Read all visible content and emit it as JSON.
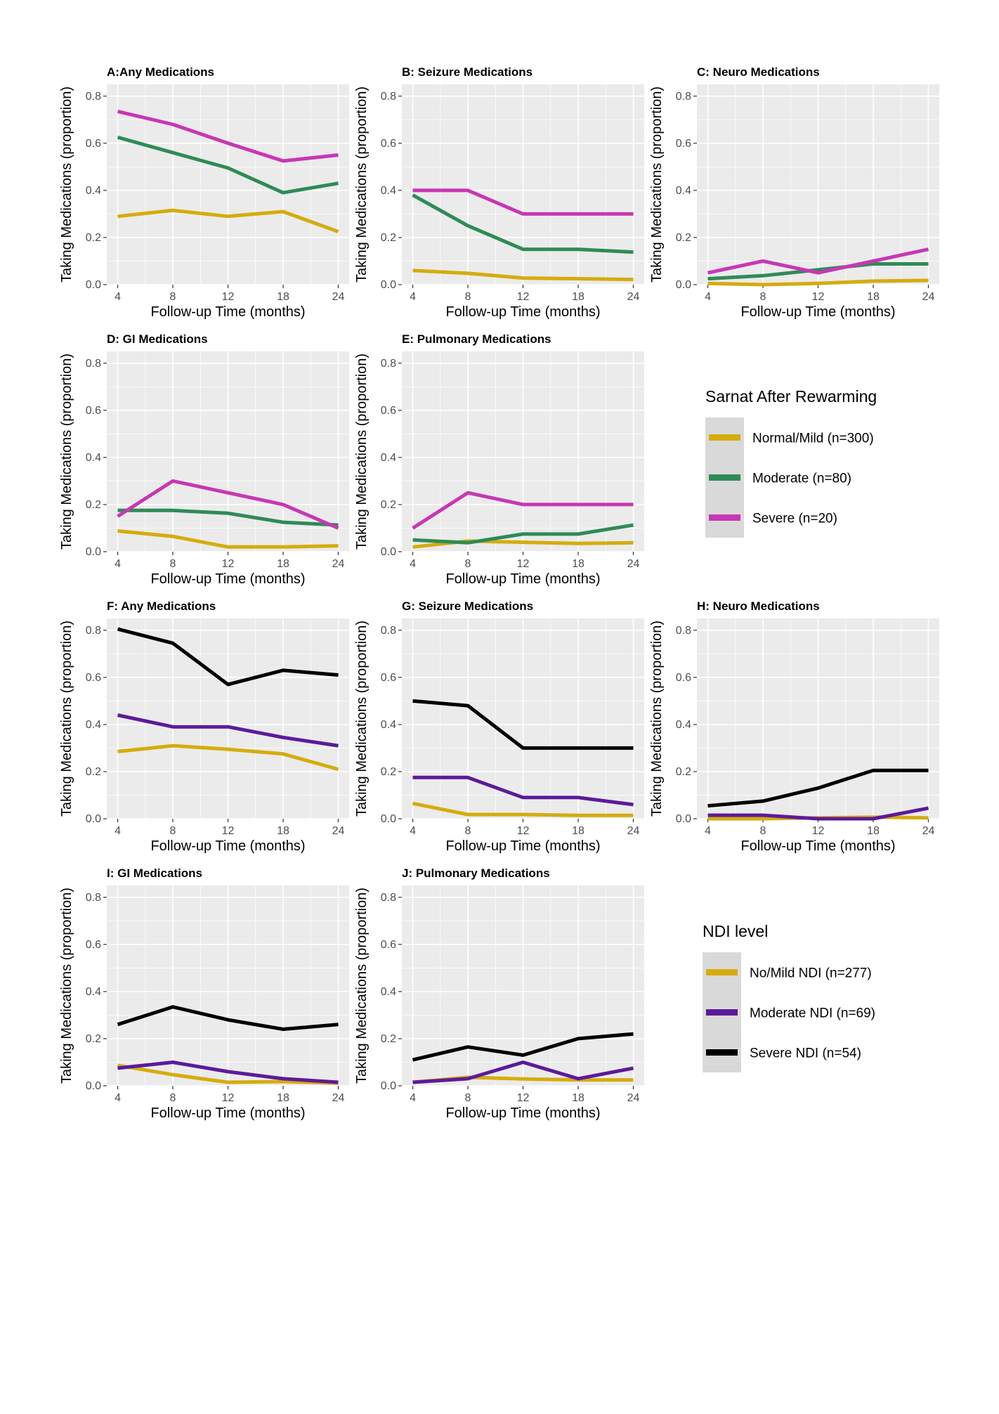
{
  "chart_data": [
    {
      "panel": "A",
      "type": "line",
      "title": "A:Any Medications",
      "xlabel": "Follow-up Time (months)",
      "ylabel": "Taking Medications (proportion)",
      "categories": [
        "4",
        "8",
        "12",
        "18",
        "24"
      ],
      "ylim": [
        0,
        0.85
      ],
      "yticks": [
        "0.0",
        "0.2",
        "0.4",
        "0.6",
        "0.8"
      ],
      "grid": true,
      "group": "sarnat",
      "series": [
        {
          "name": "Normal/Mild (n=300)",
          "color": "#d4ac0d",
          "values": [
            0.29,
            0.315,
            0.29,
            0.31,
            0.225
          ]
        },
        {
          "name": "Moderate (n=80)",
          "color": "#2e8b57",
          "values": [
            0.625,
            0.56,
            0.495,
            0.39,
            0.43
          ]
        },
        {
          "name": "Severe (n=20)",
          "color": "#c837b4",
          "values": [
            0.735,
            0.68,
            0.6,
            0.525,
            0.55
          ]
        }
      ]
    },
    {
      "panel": "B",
      "type": "line",
      "title": "B: Seizure Medications",
      "xlabel": "Follow-up Time (months)",
      "ylabel": "Taking Medications (proportion)",
      "categories": [
        "4",
        "8",
        "12",
        "18",
        "24"
      ],
      "ylim": [
        0,
        0.85
      ],
      "yticks": [
        "0.0",
        "0.2",
        "0.4",
        "0.6",
        "0.8"
      ],
      "grid": true,
      "group": "sarnat",
      "series": [
        {
          "name": "Normal/Mild (n=300)",
          "color": "#d4ac0d",
          "values": [
            0.06,
            0.048,
            0.028,
            0.025,
            0.022
          ]
        },
        {
          "name": "Moderate (n=80)",
          "color": "#2e8b57",
          "values": [
            0.38,
            0.25,
            0.15,
            0.15,
            0.138
          ]
        },
        {
          "name": "Severe (n=20)",
          "color": "#c837b4",
          "values": [
            0.4,
            0.4,
            0.3,
            0.3,
            0.3
          ]
        }
      ]
    },
    {
      "panel": "C",
      "type": "line",
      "title": "C: Neuro Medications",
      "xlabel": "Follow-up Time (months)",
      "ylabel": "Taking Medications (proportion)",
      "categories": [
        "4",
        "8",
        "12",
        "18",
        "24"
      ],
      "ylim": [
        0,
        0.85
      ],
      "yticks": [
        "0.0",
        "0.2",
        "0.4",
        "0.6",
        "0.8"
      ],
      "grid": true,
      "group": "sarnat",
      "series": [
        {
          "name": "Normal/Mild (n=300)",
          "color": "#d4ac0d",
          "values": [
            0.005,
            0.0,
            0.005,
            0.015,
            0.018
          ]
        },
        {
          "name": "Moderate (n=80)",
          "color": "#2e8b57",
          "values": [
            0.025,
            0.038,
            0.063,
            0.088,
            0.088
          ]
        },
        {
          "name": "Severe (n=20)",
          "color": "#c837b4",
          "values": [
            0.05,
            0.1,
            0.05,
            0.1,
            0.15
          ]
        }
      ]
    },
    {
      "panel": "D",
      "type": "line",
      "title": "D: GI Medications",
      "xlabel": "Follow-up Time (months)",
      "ylabel": "Taking Medications (proportion)",
      "categories": [
        "4",
        "8",
        "12",
        "18",
        "24"
      ],
      "ylim": [
        0,
        0.85
      ],
      "yticks": [
        "0.0",
        "0.2",
        "0.4",
        "0.6",
        "0.8"
      ],
      "grid": true,
      "group": "sarnat",
      "series": [
        {
          "name": "Normal/Mild (n=300)",
          "color": "#d4ac0d",
          "values": [
            0.088,
            0.065,
            0.02,
            0.02,
            0.025
          ]
        },
        {
          "name": "Moderate (n=80)",
          "color": "#2e8b57",
          "values": [
            0.175,
            0.175,
            0.163,
            0.125,
            0.113
          ]
        },
        {
          "name": "Severe (n=20)",
          "color": "#c837b4",
          "values": [
            0.15,
            0.3,
            0.25,
            0.2,
            0.1
          ]
        }
      ]
    },
    {
      "panel": "E",
      "type": "line",
      "title": "E: Pulmonary Medications",
      "xlabel": "Follow-up Time (months)",
      "ylabel": "Taking Medications (proportion)",
      "categories": [
        "4",
        "8",
        "12",
        "18",
        "24"
      ],
      "ylim": [
        0,
        0.85
      ],
      "yticks": [
        "0.0",
        "0.2",
        "0.4",
        "0.6",
        "0.8"
      ],
      "grid": true,
      "group": "sarnat",
      "series": [
        {
          "name": "Normal/Mild (n=300)",
          "color": "#d4ac0d",
          "values": [
            0.02,
            0.045,
            0.04,
            0.035,
            0.038
          ]
        },
        {
          "name": "Moderate (n=80)",
          "color": "#2e8b57",
          "values": [
            0.05,
            0.038,
            0.075,
            0.075,
            0.113
          ]
        },
        {
          "name": "Severe (n=20)",
          "color": "#c837b4",
          "values": [
            0.1,
            0.25,
            0.2,
            0.2,
            0.2
          ]
        }
      ]
    },
    {
      "panel": "F",
      "type": "line",
      "title": "F: Any Medications",
      "xlabel": "Follow-up Time (months)",
      "ylabel": "Taking Medications (proportion)",
      "categories": [
        "4",
        "8",
        "12",
        "18",
        "24"
      ],
      "ylim": [
        0,
        0.85
      ],
      "yticks": [
        "0.0",
        "0.2",
        "0.4",
        "0.6",
        "0.8"
      ],
      "grid": true,
      "group": "ndi",
      "series": [
        {
          "name": "No/Mild NDI (n=277)",
          "color": "#d4ac0d",
          "values": [
            0.285,
            0.31,
            0.295,
            0.275,
            0.21
          ]
        },
        {
          "name": "Moderate NDI (n=69)",
          "color": "#5c1a9c",
          "values": [
            0.44,
            0.39,
            0.39,
            0.345,
            0.31
          ]
        },
        {
          "name": "Severe NDI (n=54)",
          "color": "#000000",
          "values": [
            0.805,
            0.745,
            0.57,
            0.63,
            0.61
          ]
        }
      ]
    },
    {
      "panel": "G",
      "type": "line",
      "title": "G: Seizure Medications",
      "xlabel": "Follow-up Time (months)",
      "ylabel": "Taking Medications (proportion)",
      "categories": [
        "4",
        "8",
        "12",
        "18",
        "24"
      ],
      "ylim": [
        0,
        0.85
      ],
      "yticks": [
        "0.0",
        "0.2",
        "0.4",
        "0.6",
        "0.8"
      ],
      "grid": true,
      "group": "ndi",
      "series": [
        {
          "name": "No/Mild NDI (n=277)",
          "color": "#d4ac0d",
          "values": [
            0.065,
            0.018,
            0.018,
            0.014,
            0.014
          ]
        },
        {
          "name": "Moderate NDI (n=69)",
          "color": "#5c1a9c",
          "values": [
            0.175,
            0.175,
            0.09,
            0.09,
            0.06
          ]
        },
        {
          "name": "Severe NDI (n=54)",
          "color": "#000000",
          "values": [
            0.5,
            0.48,
            0.3,
            0.3,
            0.3
          ]
        }
      ]
    },
    {
      "panel": "H",
      "type": "line",
      "title": "H: Neuro Medications",
      "xlabel": "Follow-up Time (months)",
      "ylabel": "Taking Medications (proportion)",
      "categories": [
        "4",
        "8",
        "12",
        "18",
        "24"
      ],
      "ylim": [
        0,
        0.85
      ],
      "yticks": [
        "0.0",
        "0.2",
        "0.4",
        "0.6",
        "0.8"
      ],
      "grid": true,
      "group": "ndi",
      "series": [
        {
          "name": "No/Mild NDI (n=277)",
          "color": "#d4ac0d",
          "values": [
            0.0,
            0.0,
            0.004,
            0.007,
            0.004
          ]
        },
        {
          "name": "Moderate NDI (n=69)",
          "color": "#5c1a9c",
          "values": [
            0.015,
            0.015,
            0.0,
            0.0,
            0.045
          ]
        },
        {
          "name": "Severe NDI (n=54)",
          "color": "#000000",
          "values": [
            0.055,
            0.075,
            0.13,
            0.205,
            0.205
          ]
        }
      ]
    },
    {
      "panel": "I",
      "type": "line",
      "title": "I: GI Medications",
      "xlabel": "Follow-up Time (months)",
      "ylabel": "Taking Medications (proportion)",
      "categories": [
        "4",
        "8",
        "12",
        "18",
        "24"
      ],
      "ylim": [
        0,
        0.85
      ],
      "yticks": [
        "0.0",
        "0.2",
        "0.4",
        "0.6",
        "0.8"
      ],
      "grid": true,
      "group": "ndi",
      "series": [
        {
          "name": "No/Mild NDI (n=277)",
          "color": "#d4ac0d",
          "values": [
            0.087,
            0.047,
            0.015,
            0.018,
            0.011
          ]
        },
        {
          "name": "Moderate NDI (n=69)",
          "color": "#5c1a9c",
          "values": [
            0.075,
            0.1,
            0.06,
            0.03,
            0.015
          ]
        },
        {
          "name": "Severe NDI (n=54)",
          "color": "#000000",
          "values": [
            0.26,
            0.335,
            0.28,
            0.24,
            0.26
          ]
        }
      ]
    },
    {
      "panel": "J",
      "type": "line",
      "title": "J: Pulmonary Medications",
      "xlabel": "Follow-up Time (months)",
      "ylabel": "Taking Medications (proportion)",
      "categories": [
        "4",
        "8",
        "12",
        "18",
        "24"
      ],
      "ylim": [
        0,
        0.85
      ],
      "yticks": [
        "0.0",
        "0.2",
        "0.4",
        "0.6",
        "0.8"
      ],
      "grid": true,
      "group": "ndi",
      "series": [
        {
          "name": "No/Mild NDI (n=277)",
          "color": "#d4ac0d",
          "values": [
            0.015,
            0.036,
            0.029,
            0.025,
            0.025
          ]
        },
        {
          "name": "Moderate NDI (n=69)",
          "color": "#5c1a9c",
          "values": [
            0.015,
            0.03,
            0.1,
            0.03,
            0.075
          ]
        },
        {
          "name": "Severe NDI (n=54)",
          "color": "#000000",
          "values": [
            0.11,
            0.165,
            0.13,
            0.2,
            0.22
          ]
        }
      ]
    }
  ],
  "legends": {
    "sarnat": {
      "title": "Sarnat After Rewarming",
      "items": [
        {
          "label": "Normal/Mild (n=300)",
          "color": "#d4ac0d"
        },
        {
          "label": "Moderate (n=80)",
          "color": "#2e8b57"
        },
        {
          "label": "Severe (n=20)",
          "color": "#c837b4"
        }
      ]
    },
    "ndi": {
      "title": "NDI level",
      "items": [
        {
          "label": "No/Mild NDI (n=277)",
          "color": "#d4ac0d"
        },
        {
          "label": "Moderate NDI (n=69)",
          "color": "#5c1a9c"
        },
        {
          "label": "Severe NDI (n=54)",
          "color": "#000000"
        }
      ]
    }
  },
  "style": {
    "panel_background": "#ebebeb",
    "grid_color": "#ffffff",
    "legend_key_background": "#d9d9d9"
  }
}
